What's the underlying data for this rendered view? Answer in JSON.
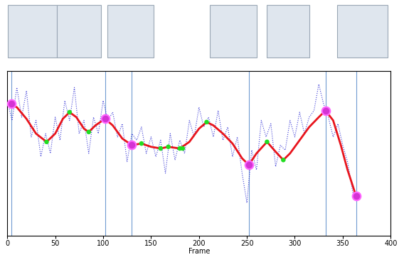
{
  "chart_data": {
    "type": "line",
    "x_label": "Frame",
    "xlim": [
      0,
      400
    ],
    "xticks": [
      0,
      50,
      100,
      150,
      200,
      250,
      300,
      350,
      400
    ],
    "ylim": [
      0,
      100
    ],
    "tick_labels": "x",
    "grid": false,
    "vertical_lines": {
      "color": "#6f9bd1",
      "x": [
        4,
        102,
        130,
        252,
        332,
        364
      ]
    },
    "series": [
      {
        "type": "line",
        "color": "#3b3bd6",
        "line_style": "dotted",
        "x": [
          0,
          5,
          10,
          15,
          20,
          25,
          30,
          35,
          40,
          45,
          50,
          55,
          60,
          65,
          70,
          75,
          80,
          85,
          90,
          95,
          100,
          105,
          110,
          115,
          120,
          125,
          130,
          135,
          140,
          145,
          150,
          155,
          160,
          165,
          170,
          175,
          180,
          185,
          190,
          195,
          200,
          205,
          210,
          215,
          220,
          225,
          230,
          235,
          240,
          245,
          250,
          255,
          260,
          265,
          270,
          275,
          280,
          285,
          290,
          295,
          300,
          305,
          310,
          315,
          320,
          325,
          330,
          335,
          340,
          345,
          350,
          355,
          360,
          362
        ],
        "values": [
          82,
          70,
          90,
          72,
          88,
          60,
          70,
          48,
          62,
          50,
          72,
          58,
          82,
          70,
          90,
          62,
          70,
          50,
          72,
          62,
          82,
          70,
          75,
          60,
          68,
          45,
          62,
          58,
          66,
          50,
          60,
          48,
          58,
          38,
          62,
          46,
          58,
          50,
          70,
          60,
          78,
          66,
          72,
          60,
          76,
          58,
          66,
          48,
          60,
          38,
          20,
          52,
          40,
          70,
          60,
          68,
          42,
          55,
          52,
          70,
          60,
          75,
          62,
          72,
          76,
          92,
          80,
          72,
          60,
          68,
          55,
          45,
          28,
          22
        ]
      },
      {
        "type": "line",
        "color": "#e8141c",
        "line_style": "solid",
        "x": [
          3,
          10,
          20,
          30,
          41,
          50,
          58,
          65,
          72,
          80,
          85,
          92,
          102,
          110,
          120,
          130,
          140,
          150,
          160,
          168,
          180,
          190,
          200,
          208,
          215,
          225,
          235,
          245,
          252,
          260,
          271,
          280,
          288,
          295,
          305,
          315,
          325,
          332,
          340,
          348,
          355,
          364
        ],
        "values": [
          80,
          78,
          71,
          62,
          57,
          62,
          71,
          75,
          72,
          65,
          63,
          67,
          71,
          67,
          59,
          55,
          56,
          54,
          53,
          54,
          53,
          57,
          65,
          69,
          67,
          62,
          56,
          47,
          43,
          50,
          57,
          51,
          46,
          50,
          58,
          66,
          72,
          76,
          70,
          55,
          40,
          24
        ]
      },
      {
        "type": "scatter",
        "color": "#22dd22",
        "marker": "o",
        "x": [
          41,
          65,
          85,
          140,
          160,
          168,
          180,
          183,
          208,
          271,
          288
        ],
        "values": [
          57,
          75,
          63,
          56,
          53,
          54,
          53,
          53,
          69,
          57,
          46
        ]
      },
      {
        "type": "scatter",
        "color": "#d433d4",
        "marker": "o",
        "x": [
          4,
          102,
          130,
          252,
          332,
          364
        ],
        "values": [
          80,
          71,
          55,
          43,
          76,
          24
        ]
      }
    ]
  }
}
